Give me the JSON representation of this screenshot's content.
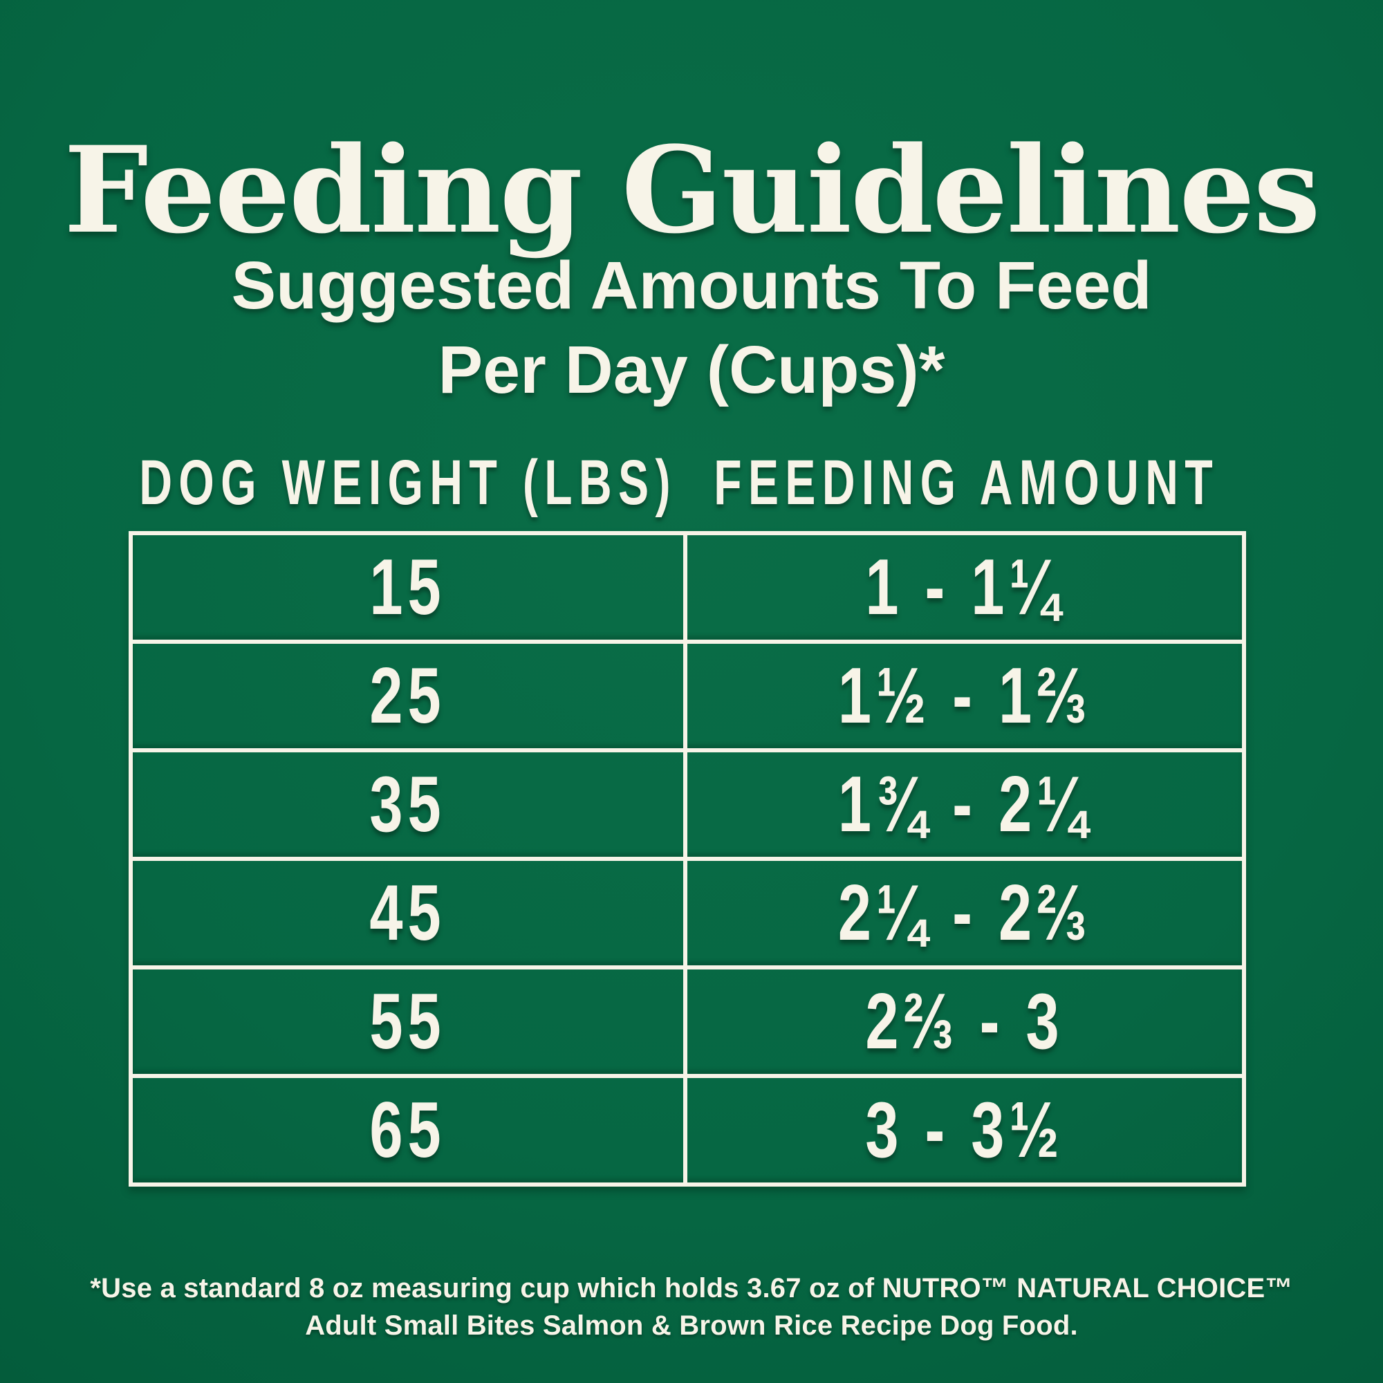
{
  "page": {
    "title": "Feeding Guidelines",
    "subtitle_line1": "Suggested Amounts To Feed",
    "subtitle_line2": "Per Day (Cups)*"
  },
  "colors": {
    "background_green": "#066743",
    "text_cream": "#F7F4E8"
  },
  "table": {
    "col_weight_header": "DOG WEIGHT (LBS)",
    "col_amount_header": "FEEDING AMOUNT",
    "rows": [
      {
        "weight": "15",
        "amount": "1 - 1¼"
      },
      {
        "weight": "25",
        "amount": "1½ - 1⅔"
      },
      {
        "weight": "35",
        "amount": "1¾ - 2¼"
      },
      {
        "weight": "45",
        "amount": "2¼ - 2⅔"
      },
      {
        "weight": "55",
        "amount": "2⅔ - 3"
      },
      {
        "weight": "65",
        "amount": "3 - 3½"
      }
    ]
  },
  "footnote": {
    "line1": "*Use a standard 8 oz measuring cup which holds 3.67 oz of NUTRO™ NATURAL CHOICE™",
    "line2": "Adult Small Bites Salmon & Brown Rice Recipe Dog Food."
  },
  "chart_data": {
    "type": "table",
    "title": "Feeding Guidelines",
    "subtitle": "Suggested Amounts To Feed Per Day (Cups)*",
    "columns": [
      "DOG WEIGHT (LBS)",
      "FEEDING AMOUNT"
    ],
    "rows": [
      [
        "15",
        "1 - 1¼"
      ],
      [
        "25",
        "1½ - 1⅔"
      ],
      [
        "35",
        "1¾ - 2¼"
      ],
      [
        "45",
        "2¼ - 2⅔"
      ],
      [
        "55",
        "2⅔ - 3"
      ],
      [
        "65",
        "3 - 3½"
      ]
    ],
    "values_numeric": [
      {
        "weight_lbs": 15,
        "cups_min": 1.0,
        "cups_max": 1.25
      },
      {
        "weight_lbs": 25,
        "cups_min": 1.5,
        "cups_max": 1.667
      },
      {
        "weight_lbs": 35,
        "cups_min": 1.75,
        "cups_max": 2.25
      },
      {
        "weight_lbs": 45,
        "cups_min": 2.25,
        "cups_max": 2.667
      },
      {
        "weight_lbs": 55,
        "cups_min": 2.667,
        "cups_max": 3.0
      },
      {
        "weight_lbs": 65,
        "cups_min": 3.0,
        "cups_max": 3.5
      }
    ],
    "footnote": "*Use a standard 8 oz measuring cup which holds 3.67 oz of NUTRO™ NATURAL CHOICE™ Adult Small Bites Salmon & Brown Rice Recipe Dog Food."
  }
}
